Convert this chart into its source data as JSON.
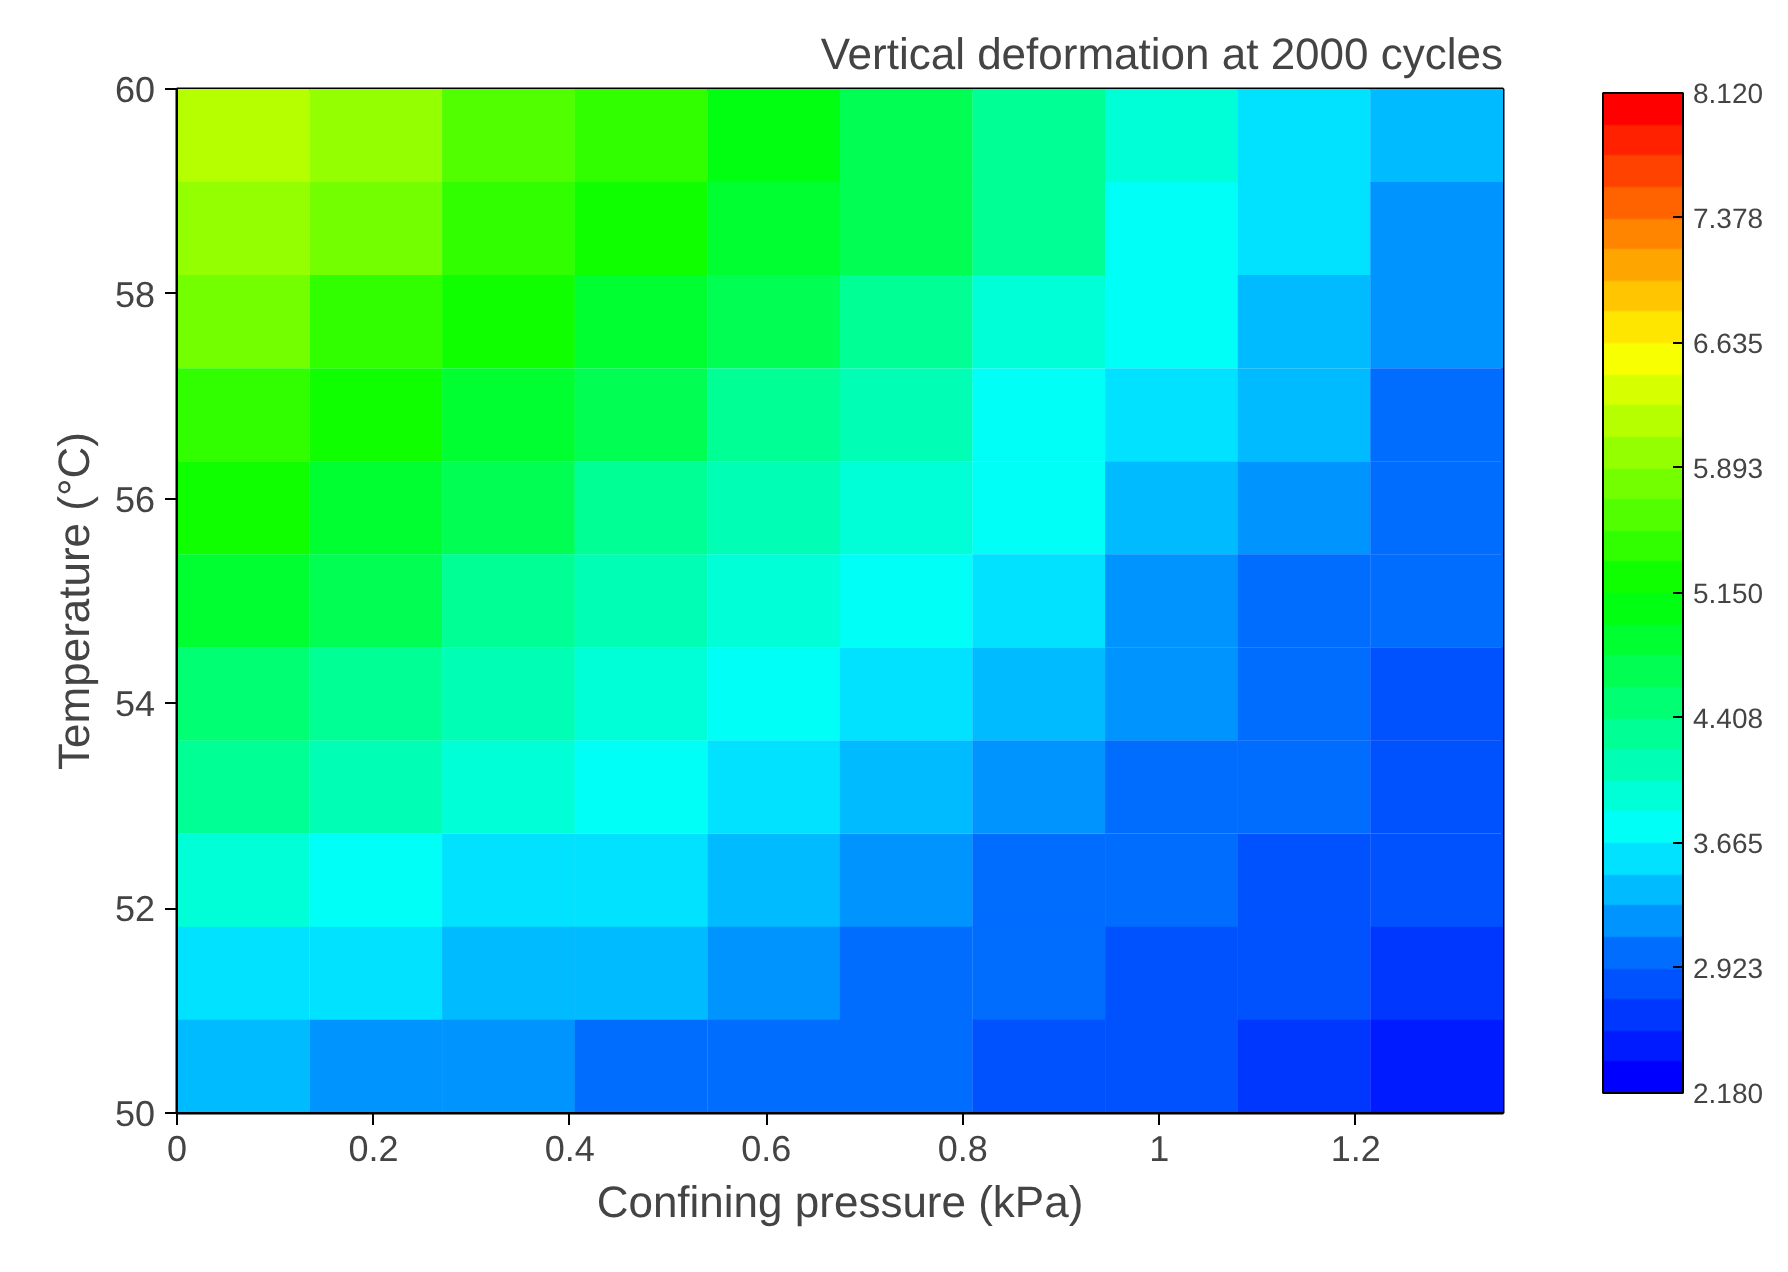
{
  "chart_data": {
    "type": "heatmap",
    "xlabel": "Confining pressure (kPa)",
    "ylabel": "Temperature (°C)",
    "clabel": "Vertical deformation at 2000 cycles",
    "xlim": [
      0,
      1.35
    ],
    "ylim": [
      50,
      60
    ],
    "xticks": [
      0,
      0.2,
      0.4,
      0.6,
      0.8,
      1,
      1.2
    ],
    "yticks": [
      50,
      52,
      54,
      56,
      58,
      60
    ],
    "clim": [
      2.18,
      8.12
    ],
    "cticks": [
      {
        "value": 2.18,
        "label": "2.180"
      },
      {
        "value": 2.923,
        "label": "2.923"
      },
      {
        "value": 3.665,
        "label": "3.665"
      },
      {
        "value": 4.408,
        "label": "4.408"
      },
      {
        "value": 5.15,
        "label": "5.150"
      },
      {
        "value": 5.893,
        "label": "5.893"
      },
      {
        "value": 6.635,
        "label": "6.635"
      },
      {
        "value": 7.378,
        "label": "7.378"
      },
      {
        "value": 8.12,
        "label": "8.120"
      }
    ],
    "cells": [
      [
        6.1,
        5.95,
        5.65,
        5.35,
        5.0,
        4.7,
        4.35,
        4.0,
        3.6,
        3.35
      ],
      [
        6.0,
        5.75,
        5.45,
        5.2,
        4.85,
        4.6,
        4.3,
        3.85,
        3.5,
        3.25
      ],
      [
        5.75,
        5.45,
        5.2,
        4.9,
        4.65,
        4.35,
        4.0,
        3.7,
        3.4,
        3.15
      ],
      [
        5.45,
        5.15,
        4.9,
        4.6,
        4.4,
        4.1,
        3.8,
        3.55,
        3.3,
        3.05
      ],
      [
        5.15,
        4.9,
        4.65,
        4.4,
        4.15,
        3.9,
        3.7,
        3.45,
        3.2,
        2.95
      ],
      [
        4.85,
        4.6,
        4.4,
        4.15,
        3.95,
        3.7,
        3.5,
        3.25,
        3.05,
        3.0
      ],
      [
        4.55,
        4.35,
        4.15,
        3.95,
        3.75,
        3.6,
        3.4,
        3.2,
        3.0,
        2.9
      ],
      [
        4.25,
        4.05,
        3.9,
        3.75,
        3.6,
        3.45,
        3.25,
        3.1,
        2.95,
        2.8
      ],
      [
        3.95,
        3.8,
        3.65,
        3.5,
        3.35,
        3.2,
        3.1,
        3.0,
        2.9,
        2.75
      ],
      [
        3.65,
        3.5,
        3.4,
        3.3,
        3.2,
        3.1,
        3.0,
        2.92,
        2.75,
        2.6
      ],
      [
        3.35,
        3.25,
        3.15,
        3.05,
        3.0,
        2.93,
        2.85,
        2.75,
        2.6,
        2.45
      ]
    ]
  }
}
